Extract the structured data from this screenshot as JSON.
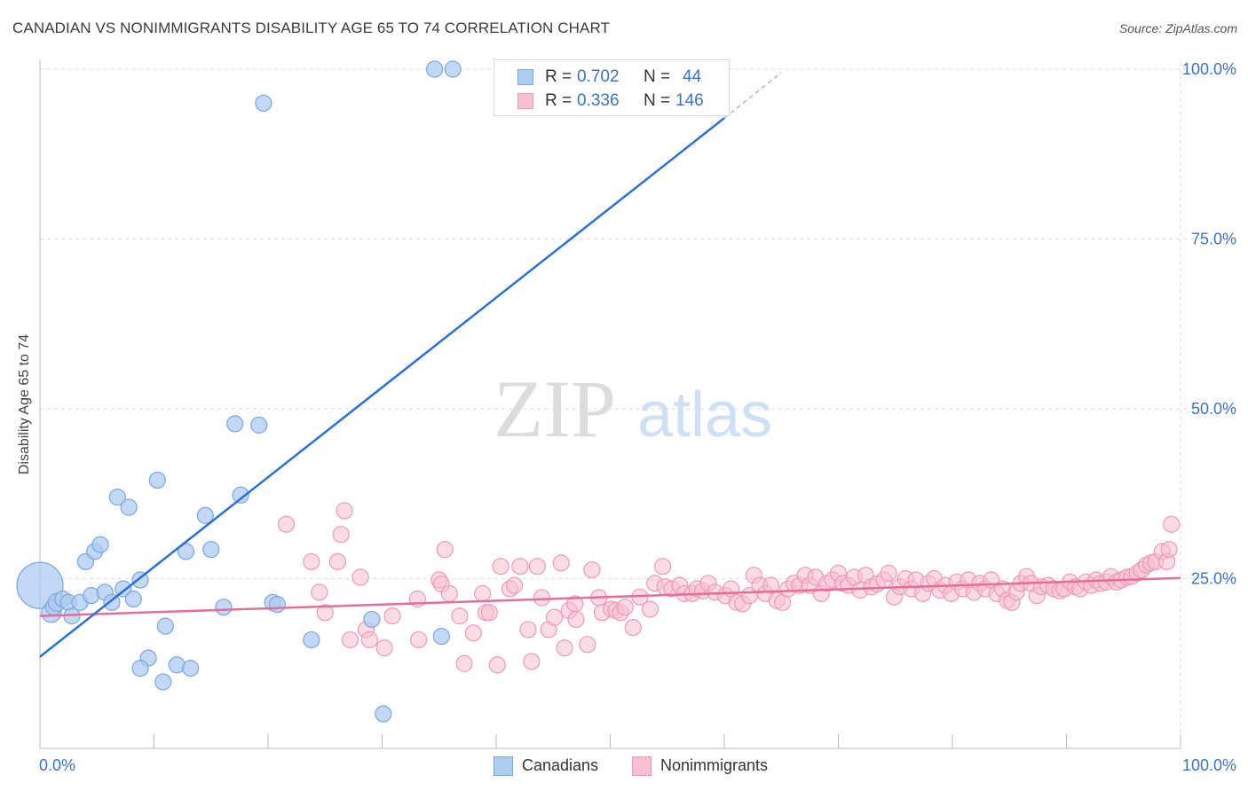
{
  "title": "CANADIAN VS NONIMMIGRANTS DISABILITY AGE 65 TO 74 CORRELATION CHART",
  "source": "Source: ZipAtlas.com",
  "watermark": {
    "zip": "ZIP",
    "atlas": "atlas"
  },
  "colors": {
    "canadians_fill": "#aecbf0",
    "canadians_stroke": "#7aa6e0",
    "canadians_line": "#2a6fd1",
    "nonimm_fill": "#f7bfd0",
    "nonimm_stroke": "#ec9ab5",
    "nonimm_line": "#e56d96",
    "tick_label": "#3a73c7",
    "grid": "#dedede"
  },
  "legend": {
    "r_label": "R =",
    "n_label": "N =",
    "canadians": {
      "r": "0.702",
      "n": "44"
    },
    "nonimmigrants": {
      "r": "0.336",
      "n": "146"
    }
  },
  "bottom_legend": {
    "canadians": "Canadians",
    "nonimmigrants": "Nonimmigrants"
  },
  "chart_data": {
    "type": "scatter",
    "title": "CANADIAN VS NONIMMIGRANTS DISABILITY AGE 65 TO 74 CORRELATION CHART",
    "xlabel": "",
    "ylabel": "Disability Age 65 to 74",
    "xlim": [
      0,
      100
    ],
    "ylim": [
      0,
      102
    ],
    "x_tick_labels": [
      "0.0%",
      "100.0%"
    ],
    "y_ticks": [
      {
        "value": 25,
        "label": "25.0%"
      },
      {
        "value": 50,
        "label": "50.0%"
      },
      {
        "value": 75,
        "label": "75.0%"
      },
      {
        "value": 100,
        "label": "100.0%"
      }
    ],
    "grid": true,
    "legend_position": "top-center",
    "series": [
      {
        "name": "Canadians",
        "r": 0.702,
        "n": 44,
        "trend": {
          "x": [
            0,
            60
          ],
          "y": [
            13.5,
            92.8
          ]
        },
        "trend_extension": {
          "x": [
            60,
            65
          ],
          "y": [
            92.8,
            99.5
          ]
        },
        "points": [
          [
            0.0,
            24.0,
            26
          ],
          [
            1,
            20,
            11
          ],
          [
            1.2,
            20.8,
            9
          ],
          [
            1.5,
            21.5,
            10
          ],
          [
            2,
            22,
            9
          ],
          [
            2.5,
            21.5,
            9
          ],
          [
            2.8,
            19.5,
            9
          ],
          [
            3.5,
            21.5,
            9
          ],
          [
            4,
            27.5,
            9
          ],
          [
            4.5,
            22.5,
            9
          ],
          [
            4.8,
            29,
            9
          ],
          [
            5.3,
            30,
            9
          ],
          [
            5.7,
            23,
            9
          ],
          [
            6.3,
            21.5,
            9
          ],
          [
            6.8,
            37,
            9
          ],
          [
            7.3,
            23.5,
            9
          ],
          [
            7.8,
            35.5,
            9
          ],
          [
            8.2,
            22,
            9
          ],
          [
            8.8,
            24.8,
            9
          ],
          [
            9.5,
            13.3,
            9
          ],
          [
            10.3,
            39.5,
            9
          ],
          [
            11,
            18,
            9
          ],
          [
            12,
            12.3,
            9
          ],
          [
            8.8,
            11.8,
            9
          ],
          [
            10.8,
            9.8,
            9
          ],
          [
            13.2,
            11.8,
            9
          ],
          [
            12.8,
            29,
            9
          ],
          [
            14.5,
            34.3,
            9
          ],
          [
            15,
            29.3,
            9
          ],
          [
            16.1,
            20.8,
            9
          ],
          [
            17.1,
            47.8,
            9
          ],
          [
            17.6,
            37.3,
            9
          ],
          [
            19.2,
            47.6,
            9
          ],
          [
            19.6,
            95,
            9
          ],
          [
            20.4,
            21.5,
            9
          ],
          [
            20.8,
            21.2,
            9
          ],
          [
            23.8,
            16,
            9
          ],
          [
            29.1,
            19,
            9
          ],
          [
            30.1,
            5.1,
            9
          ],
          [
            35.2,
            16.5,
            9
          ],
          [
            34.6,
            100,
            9
          ],
          [
            36.2,
            100,
            9
          ],
          [
            54.2,
            100,
            9
          ],
          [
            55.6,
            100,
            9
          ]
        ]
      },
      {
        "name": "Nonimmigrants",
        "r": 0.336,
        "n": 146,
        "trend": {
          "x": [
            0,
            100
          ],
          "y": [
            19.5,
            25.1
          ]
        },
        "points": [
          [
            21.6,
            33
          ],
          [
            23.8,
            27.5
          ],
          [
            24.5,
            23
          ],
          [
            25,
            20
          ],
          [
            26.1,
            27.5
          ],
          [
            26.4,
            31.5
          ],
          [
            26.7,
            35
          ],
          [
            27.2,
            16
          ],
          [
            28.1,
            25.2
          ],
          [
            28.6,
            17.5
          ],
          [
            28.9,
            16
          ],
          [
            30.2,
            14.8
          ],
          [
            30.9,
            19.5
          ],
          [
            33.1,
            22
          ],
          [
            33.2,
            16
          ],
          [
            35,
            24.8
          ],
          [
            35.2,
            24.2
          ],
          [
            35.5,
            29.3
          ],
          [
            35.9,
            22.8
          ],
          [
            36.8,
            19.5
          ],
          [
            37.2,
            12.5
          ],
          [
            38,
            17
          ],
          [
            38.8,
            22.8
          ],
          [
            39.1,
            20
          ],
          [
            39.4,
            20
          ],
          [
            40.1,
            12.3
          ],
          [
            40.4,
            26.8
          ],
          [
            41.2,
            23.5
          ],
          [
            41.6,
            24
          ],
          [
            42.1,
            26.8
          ],
          [
            42.8,
            17.5
          ],
          [
            43.1,
            12.8
          ],
          [
            43.6,
            26.8
          ],
          [
            44,
            22.2
          ],
          [
            44.6,
            17.5
          ],
          [
            45.1,
            19.3
          ],
          [
            45.7,
            27.3
          ],
          [
            46,
            14.8
          ],
          [
            46.4,
            20.3
          ],
          [
            46.9,
            21.3
          ],
          [
            47,
            19
          ],
          [
            48,
            15.3
          ],
          [
            48.4,
            26.3
          ],
          [
            49,
            22.2
          ],
          [
            49.3,
            20
          ],
          [
            50.1,
            20.5
          ],
          [
            50.5,
            20.3
          ],
          [
            50.9,
            20
          ],
          [
            51.3,
            20.8
          ],
          [
            52,
            17.8
          ],
          [
            52.6,
            22.3
          ],
          [
            53.5,
            20.5
          ],
          [
            53.9,
            24.3
          ],
          [
            54.6,
            26.8
          ],
          [
            54.8,
            23.8
          ],
          [
            55.4,
            23.5
          ],
          [
            56.1,
            24
          ],
          [
            56.5,
            22.8
          ],
          [
            57.2,
            22.8
          ],
          [
            57.6,
            23.5
          ],
          [
            58.1,
            23.2
          ],
          [
            58.6,
            24.3
          ],
          [
            59.2,
            23
          ],
          [
            60.1,
            22.5
          ],
          [
            60.6,
            23.5
          ],
          [
            61.1,
            21.5
          ],
          [
            61.6,
            21.3
          ],
          [
            62.2,
            22.5
          ],
          [
            62.6,
            25.5
          ],
          [
            63.1,
            24
          ],
          [
            63.6,
            22.8
          ],
          [
            64.1,
            24
          ],
          [
            64.6,
            21.8
          ],
          [
            65.1,
            21.5
          ],
          [
            65.6,
            23.5
          ],
          [
            66.1,
            24.3
          ],
          [
            66.6,
            24
          ],
          [
            67.1,
            25.5
          ],
          [
            67.5,
            24
          ],
          [
            68,
            25.2
          ],
          [
            68.5,
            22.8
          ],
          [
            69,
            24.3
          ],
          [
            69.5,
            24.8
          ],
          [
            70,
            25.8
          ],
          [
            70.4,
            24.3
          ],
          [
            70.9,
            24
          ],
          [
            71.4,
            25.2
          ],
          [
            71.9,
            23.3
          ],
          [
            72.4,
            25.5
          ],
          [
            72.9,
            23.8
          ],
          [
            73.4,
            24.2
          ],
          [
            74,
            24.8
          ],
          [
            74.4,
            25.8
          ],
          [
            74.9,
            22.3
          ],
          [
            75.4,
            23.8
          ],
          [
            75.9,
            25
          ],
          [
            76.4,
            23.5
          ],
          [
            76.8,
            24.8
          ],
          [
            77.4,
            22.8
          ],
          [
            77.9,
            24.3
          ],
          [
            78.4,
            25
          ],
          [
            78.9,
            23.3
          ],
          [
            79.4,
            24
          ],
          [
            79.9,
            22.8
          ],
          [
            80.4,
            24.5
          ],
          [
            80.9,
            23.5
          ],
          [
            81.4,
            24.8
          ],
          [
            81.9,
            23
          ],
          [
            82.4,
            24.3
          ],
          [
            82.9,
            23.5
          ],
          [
            83.4,
            24.8
          ],
          [
            83.9,
            22.8
          ],
          [
            84.4,
            23.5
          ],
          [
            84.8,
            21.8
          ],
          [
            85.2,
            21.5
          ],
          [
            85.6,
            23
          ],
          [
            86,
            24.3
          ],
          [
            86.5,
            25.3
          ],
          [
            86.9,
            24.3
          ],
          [
            87.4,
            22.5
          ],
          [
            87.8,
            23.8
          ],
          [
            88.4,
            24
          ],
          [
            88.9,
            23.5
          ],
          [
            89.4,
            23.2
          ],
          [
            89.8,
            23.5
          ],
          [
            90.3,
            24.5
          ],
          [
            90.8,
            23.8
          ],
          [
            91.2,
            23.5
          ],
          [
            91.7,
            24.5
          ],
          [
            92.2,
            24
          ],
          [
            92.6,
            24.8
          ],
          [
            93,
            24.3
          ],
          [
            93.5,
            24.5
          ],
          [
            93.9,
            25.3
          ],
          [
            94.4,
            24.5
          ],
          [
            94.8,
            24.8
          ],
          [
            95.3,
            25.2
          ],
          [
            95.7,
            25.3
          ],
          [
            96.2,
            25.8
          ],
          [
            96.6,
            26.3
          ],
          [
            97,
            27
          ],
          [
            97.4,
            27.3
          ],
          [
            97.8,
            27.5
          ],
          [
            98.4,
            29
          ],
          [
            98.8,
            27.5
          ],
          [
            99,
            29.3
          ],
          [
            99.2,
            33
          ]
        ]
      }
    ]
  }
}
